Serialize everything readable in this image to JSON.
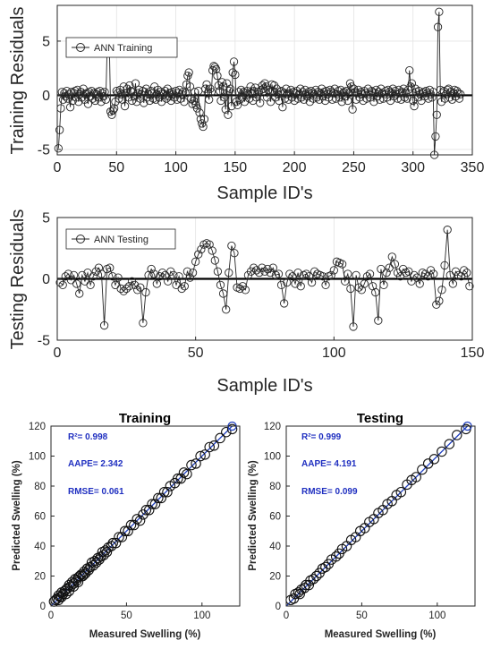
{
  "chart_data": [
    {
      "type": "line",
      "xlabel": "Sample ID's",
      "ylabel": "Training Residuals",
      "xlim": [
        0,
        350
      ],
      "ylim": [
        -5.5,
        8.3
      ],
      "xticks": [
        "0",
        "50",
        "100",
        "150",
        "200",
        "250",
        "300",
        "350"
      ],
      "yticks": [
        "-5",
        "0",
        "5"
      ],
      "grid": true,
      "zero_line": true,
      "legend_position": "top-left",
      "series": [
        {
          "name": "ANN Training",
          "values": [
            -4.9,
            -3.2,
            -1.2,
            0.3,
            -0.4,
            0.2,
            -0.1,
            0.4,
            -0.3,
            0.1,
            -1.1,
            0.3,
            -0.5,
            0.2,
            0.4,
            -0.2,
            0.5,
            -0.6,
            0.1,
            0.3,
            -0.2,
            0.6,
            -0.4,
            0.1,
            0.2,
            -0.8,
            0.3,
            -0.1,
            0.4,
            -0.3,
            0.2,
            -0.5,
            0.1,
            0.3,
            -0.2,
            0.4,
            -0.6,
            0.2,
            -0.1,
            0.3,
            -0.4,
            4.2,
            4.4,
            4.3,
            -1.5,
            -1.8,
            -1.4,
            -1.2,
            -0.6,
            0.4,
            0.2,
            -0.3,
            0.5,
            0.1,
            -0.4,
            0.8,
            -1.0,
            0.2,
            0.6,
            -0.2,
            0.9,
            0.4,
            -0.5,
            0.3,
            -0.1,
            1.1,
            -0.6,
            0.2,
            0.5,
            -0.3,
            0.1,
            0.4,
            -0.7,
            0.3,
            0.6,
            -0.2,
            0.1,
            -0.5,
            0.4,
            0.2,
            -0.3,
            0.8,
            -0.4,
            0.1,
            0.5,
            -0.2,
            0.3,
            -0.6,
            0.2,
            0.1,
            0.4,
            -0.3,
            0.6,
            -0.1,
            0.2,
            -0.5,
            0.3,
            0.1,
            -0.2,
            0.4,
            -0.4,
            0.2,
            0.5,
            -0.3,
            0.1,
            0.3,
            -0.6,
            0.2,
            1.0,
            1.8,
            2.1,
            0.8,
            -0.3,
            -0.8,
            -0.5,
            0.3,
            -0.9,
            -1.2,
            0.4,
            -1.6,
            -2.2,
            -2.6,
            -2.9,
            -2.2,
            0.6,
            1.0,
            0.2,
            -0.4,
            0.6,
            0.3,
            2.3,
            2.7,
            2.6,
            2.4,
            1.8,
            0.9,
            0.4,
            -0.5,
            1.2,
            0.8,
            -0.2,
            -1.3,
            1.1,
            -1.8,
            0.4,
            0.6,
            -1.0,
            2.1,
            3.1,
            1.9,
            -0.6,
            -0.9,
            0.3,
            -0.4,
            0.5,
            -0.2,
            0.3,
            -0.6,
            0.2,
            0.4,
            0.1,
            -0.3,
            0.8,
            0.2,
            -0.5,
            0.4,
            0.7,
            -0.2,
            0.1,
            0.3,
            -0.7,
            0.5,
            0.9,
            0.6,
            1.1,
            0.8,
            -0.2,
            0.5,
            0.3,
            -0.6,
            1.0,
            0.4,
            0.9,
            -0.2,
            0.6,
            0.1,
            -0.5,
            0.3,
            0.4,
            -1.1,
            0.2,
            -0.3,
            0.6,
            0.1,
            -0.4,
            0.2,
            0.5,
            -0.2,
            0.3,
            -0.5,
            0.2,
            0.4,
            -0.3,
            0.1,
            0.6,
            -0.2,
            0.3,
            -0.4,
            0.5,
            0.1,
            -0.1,
            0.3,
            -0.6,
            0.4,
            0.2,
            -0.3,
            0.1,
            0.5,
            -0.2,
            0.3,
            -0.4,
            0.2,
            0.6,
            -0.1,
            0.3,
            -0.5,
            0.4,
            0.1,
            -0.2,
            0.5,
            0.3,
            -0.4,
            0.2,
            0.6,
            -0.3,
            0.1,
            0.4,
            -0.2,
            0.5,
            -0.6,
            0.2,
            0.3,
            -0.1,
            0.4,
            -0.5,
            0.2,
            1.1,
            0.8,
            -1.3,
            0.6,
            0.3,
            -0.4,
            0.2,
            0.5,
            -0.2,
            0.3,
            0.1,
            -0.5,
            0.4,
            0.2,
            -0.3,
            0.6,
            0.1,
            -0.2,
            0.4,
            0.3,
            -0.6,
            0.2,
            0.5,
            -0.1,
            0.3,
            -0.4,
            0.6,
            0.2,
            -0.3,
            0.1,
            0.4,
            -0.2,
            0.5,
            0.3,
            -0.5,
            0.2,
            0.6,
            -0.1,
            0.4,
            0.1,
            -0.3,
            0.5,
            0.2,
            -0.4,
            0.3,
            0.6,
            -0.2,
            0.2,
            -0.3,
            0.5,
            2.3,
            0.8,
            1.1,
            -0.5,
            -1.0,
            0.6,
            0.3,
            -0.2,
            0.4,
            0.1,
            -0.5,
            0.2,
            0.3,
            -0.1,
            0.4,
            0.2,
            -0.3,
            0.5,
            0.1,
            -0.2,
            0.3,
            -5.5,
            -3.8,
            -1.8,
            6.3,
            7.7,
            0.5,
            -0.6,
            0.2,
            0.4,
            -0.3,
            0.1,
            0.5,
            0.6,
            -0.2,
            0.3,
            -0.4,
            0.2,
            0.5,
            -0.1,
            0.4,
            0.2,
            -0.3,
            0.1
          ]
        }
      ]
    },
    {
      "type": "line",
      "xlabel": "Sample ID's",
      "ylabel": "Testing Residuals",
      "xlim": [
        0,
        150
      ],
      "ylim": [
        -5,
        5
      ],
      "xticks": [
        "0",
        "50",
        "100",
        "150"
      ],
      "yticks": [
        "-5",
        "0",
        "5"
      ],
      "grid": true,
      "zero_line": true,
      "legend_position": "top-left",
      "series": [
        {
          "name": "ANN Testing",
          "values": [
            -0.3,
            -0.5,
            0.2,
            0.4,
            -0.1,
            0.3,
            -0.4,
            -1.2,
            0.3,
            -0.2,
            0.5,
            -0.5,
            0.2,
            0.6,
            0.9,
            0.4,
            -3.8,
            0.8,
            0.9,
            0.2,
            -0.5,
            0.1,
            -0.8,
            -1.0,
            -0.8,
            -0.6,
            -0.2,
            -0.5,
            -0.9,
            -0.7,
            -3.6,
            -1.1,
            0.3,
            0.8,
            0.4,
            -0.4,
            0.2,
            0.5,
            0.3,
            -0.2,
            0.6,
            0.3,
            -0.5,
            0.2,
            -0.8,
            -0.6,
            0.6,
            0.1,
            0.5,
            1.4,
            2.0,
            2.4,
            2.8,
            2.9,
            2.8,
            2.3,
            1.5,
            0.6,
            -0.5,
            -1.2,
            -2.5,
            0.5,
            2.7,
            2.1,
            -0.7,
            -0.8,
            -0.6,
            -0.9,
            0.3,
            0.6,
            0.9,
            0.7,
            0.5,
            0.9,
            0.6,
            0.8,
            0.5,
            0.9,
            0.3,
            0.4,
            -0.5,
            -2.0,
            -0.3,
            0.4,
            0.2,
            -0.4,
            0.5,
            -0.6,
            0.3,
            0.4,
            0.2,
            -0.3,
            0.6,
            0.4,
            0.3,
            0.2,
            -0.5,
            0.2,
            0.3,
            0.7,
            1.4,
            1.3,
            1.2,
            -0.2,
            0.4,
            -0.8,
            -3.9,
            0.3,
            -0.7,
            -0.9,
            -0.4,
            0.2,
            0.4,
            -0.6,
            -1.1,
            -3.4,
            0.8,
            -0.5,
            0.5,
            0.9,
            1.8,
            1.2,
            0.5,
            0.2,
            0.8,
            0.5,
            0.6,
            -0.2,
            0.3,
            0.1,
            -0.4,
            0.5,
            0.4,
            0.2,
            0.7,
            0.4,
            -2.1,
            -1.8,
            -0.9,
            1.1,
            4.0,
            0.3,
            -0.4,
            0.6,
            0.3,
            0.2,
            0.7,
            0.5,
            -0.6
          ]
        }
      ]
    },
    {
      "type": "scatter",
      "title": "Training",
      "xlabel": "Measured Swelling (%)",
      "ylabel": "Predicted Swelling (%)",
      "xlim": [
        0,
        125
      ],
      "ylim": [
        0,
        120
      ],
      "xticks": [
        "0",
        "50",
        "100"
      ],
      "yticks": [
        "0",
        "20",
        "40",
        "60",
        "80",
        "100",
        "120"
      ],
      "annotations": [
        "R²= 0.998",
        "AAPE= 2.342",
        "RMSE= 0.061"
      ],
      "reference_line": {
        "from": [
          0,
          0
        ],
        "to": [
          120,
          120
        ],
        "color": "#1f3fbf"
      },
      "x": [
        2,
        3,
        4,
        5,
        5,
        6,
        7,
        7,
        8,
        9,
        10,
        10,
        11,
        12,
        12,
        13,
        14,
        15,
        15,
        16,
        17,
        18,
        18,
        19,
        20,
        21,
        22,
        22,
        23,
        24,
        25,
        26,
        27,
        28,
        29,
        30,
        31,
        32,
        33,
        34,
        35,
        36,
        37,
        38,
        40,
        41,
        43,
        45,
        47,
        49,
        51,
        53,
        55,
        57,
        59,
        61,
        63,
        65,
        67,
        69,
        71,
        73,
        75,
        77,
        79,
        82,
        84,
        86,
        88,
        90,
        93,
        96,
        99,
        102,
        105,
        108,
        112,
        116,
        120
      ],
      "y": [
        3,
        4,
        5,
        7,
        4,
        6,
        9,
        6,
        8,
        10,
        11,
        8,
        12,
        14,
        10,
        13,
        16,
        15,
        13,
        18,
        17,
        19,
        16,
        20,
        21,
        20,
        23,
        21,
        22,
        25,
        24,
        26,
        29,
        27,
        30,
        29,
        32,
        31,
        33,
        36,
        34,
        37,
        36,
        39,
        40,
        42,
        42,
        46,
        46,
        50,
        50,
        54,
        54,
        58,
        57,
        61,
        64,
        64,
        68,
        68,
        72,
        72,
        76,
        76,
        80,
        82,
        85,
        85,
        89,
        88,
        94,
        95,
        100,
        101,
        106,
        107,
        112,
        116,
        118
      ]
    },
    {
      "type": "scatter",
      "title": "Testing",
      "xlabel": "Measured Swelling (%)",
      "ylabel": "Predicted Swelling (%)",
      "xlim": [
        0,
        125
      ],
      "ylim": [
        0,
        120
      ],
      "xticks": [
        "0",
        "50",
        "100"
      ],
      "yticks": [
        "0",
        "20",
        "40",
        "60",
        "80",
        "100",
        "120"
      ],
      "annotations": [
        "R²= 0.999",
        "AAPE= 4.191",
        "RMSE= 0.099"
      ],
      "reference_line": {
        "from": [
          0,
          0
        ],
        "to": [
          120,
          120
        ],
        "color": "#1f3fbf"
      },
      "x": [
        3,
        5,
        6,
        8,
        9,
        10,
        12,
        13,
        15,
        16,
        18,
        20,
        22,
        24,
        26,
        28,
        30,
        33,
        35,
        37,
        40,
        43,
        46,
        49,
        52,
        55,
        58,
        61,
        64,
        67,
        70,
        73,
        76,
        80,
        83,
        86,
        90,
        94,
        98,
        103,
        108,
        113,
        119
      ],
      "y": [
        4,
        5,
        8,
        9,
        8,
        11,
        12,
        14,
        14,
        17,
        18,
        20,
        22,
        25,
        26,
        28,
        31,
        33,
        35,
        38,
        40,
        44,
        46,
        50,
        52,
        56,
        58,
        62,
        64,
        68,
        70,
        74,
        76,
        81,
        84,
        86,
        91,
        95,
        98,
        103,
        108,
        114,
        118
      ]
    }
  ]
}
